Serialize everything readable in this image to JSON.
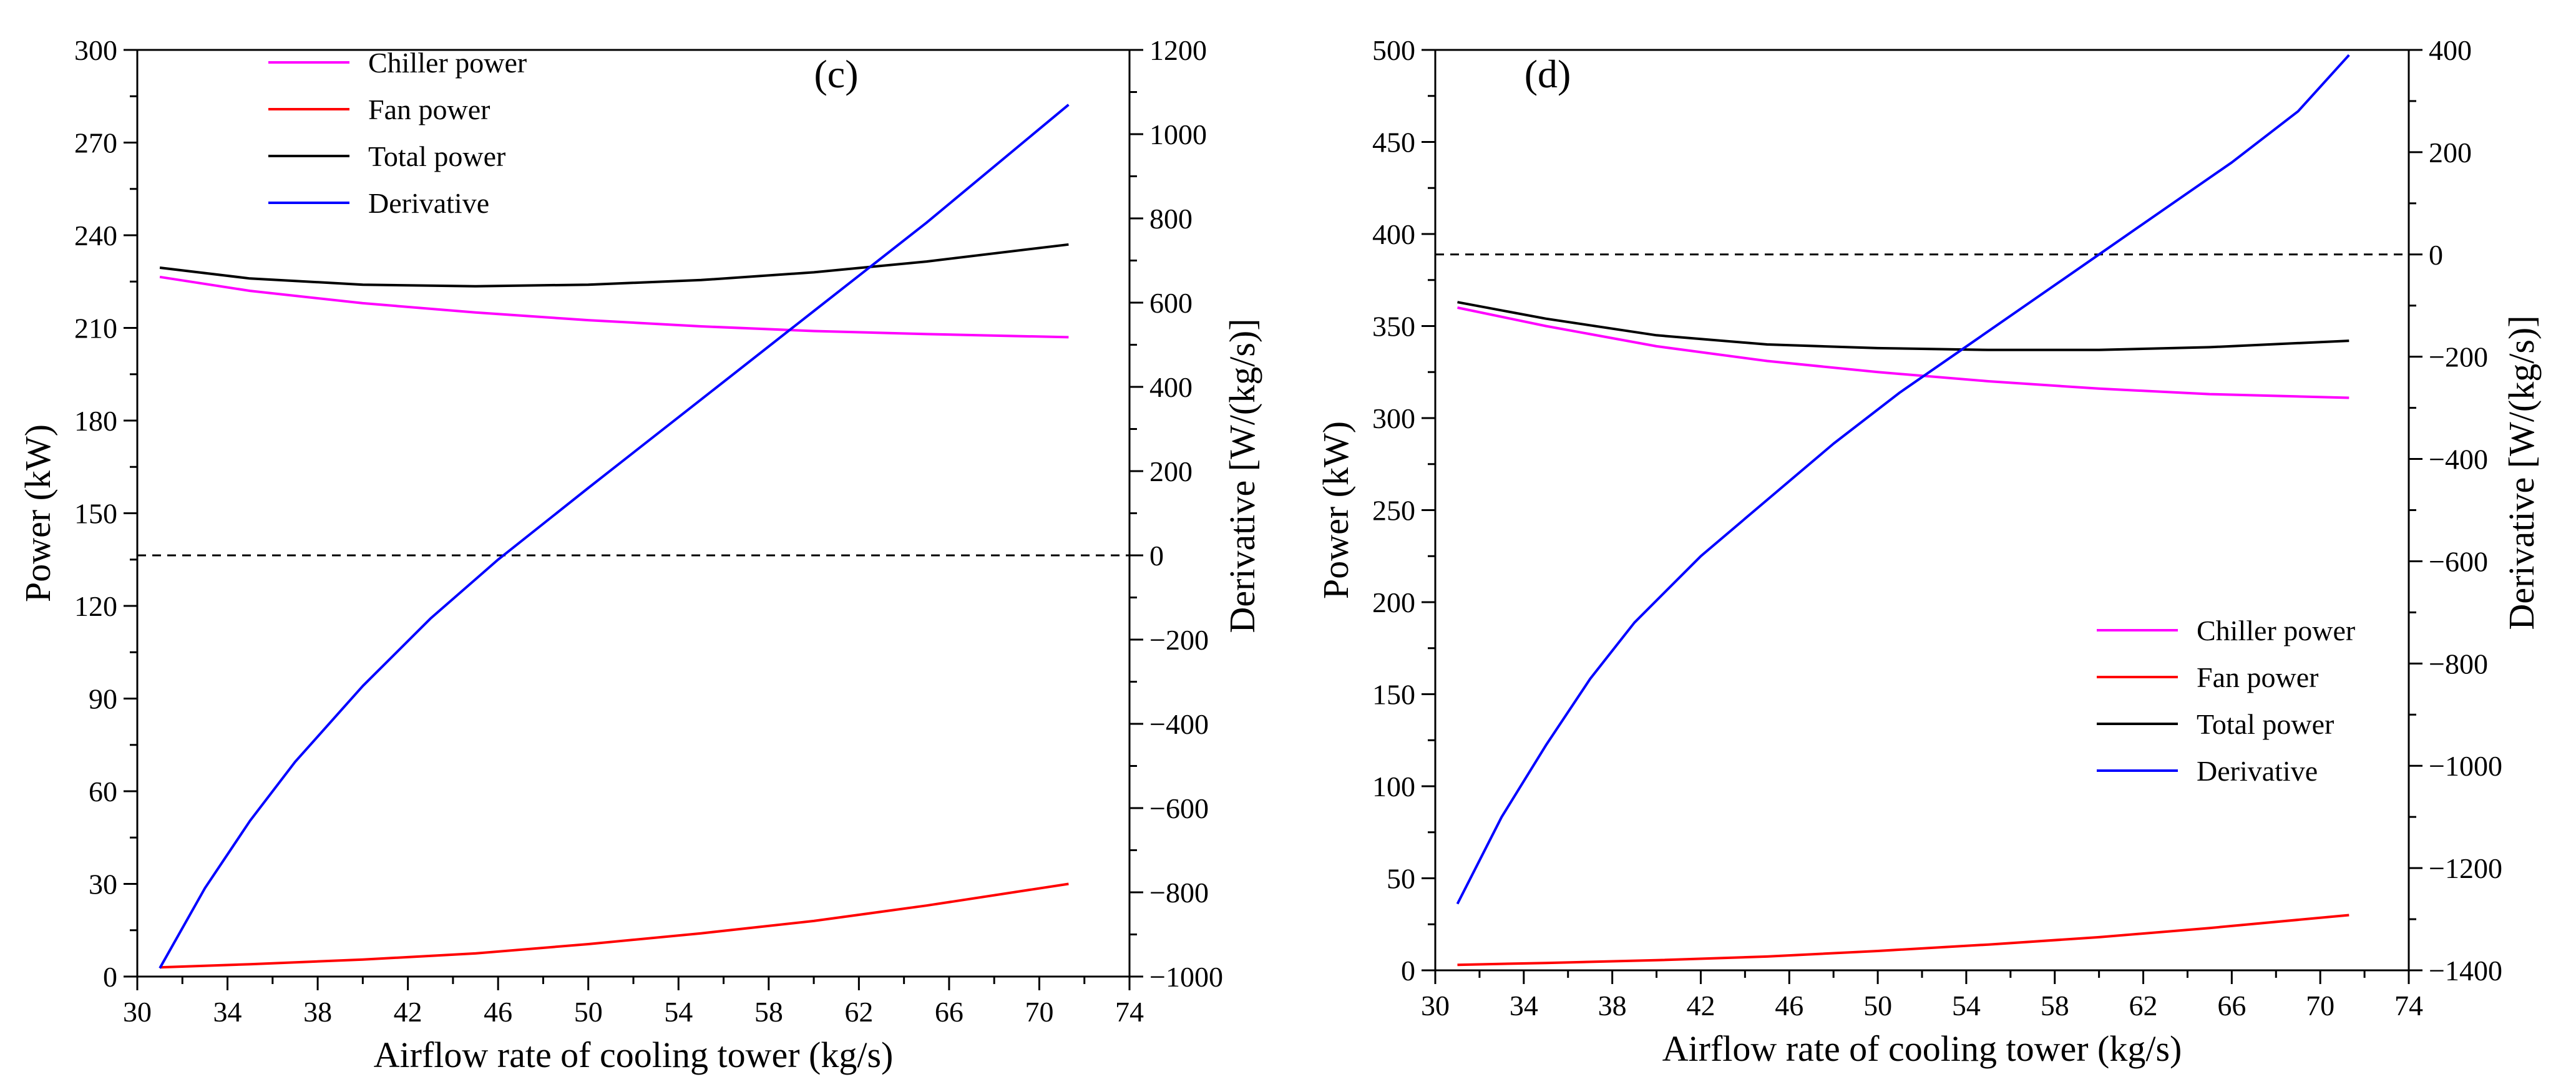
{
  "chart_data": [
    {
      "type": "line",
      "panel_label": "(c)",
      "xlabel": "Airflow rate of cooling tower (kg/s)",
      "ylabel": "Power (kW)",
      "y2label": "Derivative [W/(kg/s)]",
      "xlim": [
        30,
        74
      ],
      "ylim": [
        0,
        300
      ],
      "y2lim": [
        -1000,
        1200
      ],
      "xticks": [
        "30",
        "34",
        "38",
        "42",
        "46",
        "50",
        "54",
        "58",
        "62",
        "66",
        "70",
        "74"
      ],
      "yticks": [
        "0",
        "30",
        "60",
        "90",
        "120",
        "150",
        "180",
        "210",
        "240",
        "270",
        "300"
      ],
      "y2ticks": [
        "−1000",
        "−800",
        "−600",
        "−400",
        "−200",
        "0",
        "200",
        "400",
        "600",
        "800",
        "1000",
        "1200"
      ],
      "reference_line": {
        "axis": "y2",
        "value": 0,
        "style": "dashed"
      },
      "legend_position": "top-left",
      "series": [
        {
          "name": "Chiller power",
          "color": "#ff00ff",
          "axis": "y",
          "x": [
            31,
            35,
            40,
            45,
            50,
            55,
            60,
            65,
            71.3
          ],
          "values": [
            226.5,
            222,
            218,
            215,
            212.5,
            210.5,
            209,
            208,
            207
          ]
        },
        {
          "name": "Fan power",
          "color": "#ff0000",
          "axis": "y",
          "x": [
            31,
            35,
            40,
            45,
            50,
            55,
            60,
            65,
            71.3
          ],
          "values": [
            3,
            4,
            5.5,
            7.5,
            10.5,
            14,
            18,
            23,
            30
          ]
        },
        {
          "name": "Total power",
          "color": "#000000",
          "axis": "y",
          "x": [
            31,
            35,
            40,
            45,
            50,
            55,
            60,
            65,
            71.3
          ],
          "values": [
            229.5,
            226,
            224,
            223.5,
            224,
            225.5,
            228,
            231.5,
            237
          ]
        },
        {
          "name": "Derivative",
          "color": "#0000ff",
          "axis": "y2",
          "x": [
            31,
            33,
            35,
            37,
            40,
            43,
            46,
            50,
            55,
            60,
            65,
            71.3
          ],
          "values": [
            -980,
            -790,
            -630,
            -490,
            -310,
            -150,
            -10,
            160,
            370,
            580,
            790,
            1070
          ]
        }
      ]
    },
    {
      "type": "line",
      "panel_label": "(d)",
      "xlabel": "Airflow rate of cooling tower (kg/s)",
      "ylabel": "Power (kW)",
      "y2label": "Derivative [W/(kg/s)]",
      "xlim": [
        30,
        74
      ],
      "ylim": [
        0,
        500
      ],
      "y2lim": [
        -1400,
        400
      ],
      "xticks": [
        "30",
        "34",
        "38",
        "42",
        "46",
        "50",
        "54",
        "58",
        "62",
        "66",
        "70",
        "74"
      ],
      "yticks": [
        "0",
        "50",
        "100",
        "150",
        "200",
        "250",
        "300",
        "350",
        "400",
        "450",
        "500"
      ],
      "y2ticks": [
        "−1400",
        "−1200",
        "−1000",
        "−800",
        "−600",
        "−400",
        "−200",
        "0",
        "200",
        "400"
      ],
      "reference_line": {
        "axis": "y2",
        "value": 0,
        "style": "dashed"
      },
      "legend_position": "lower-right",
      "series": [
        {
          "name": "Chiller power",
          "color": "#ff00ff",
          "axis": "y",
          "x": [
            31,
            35,
            40,
            45,
            50,
            55,
            60,
            65,
            71.3
          ],
          "values": [
            360,
            350,
            339,
            331,
            325,
            320,
            316,
            313,
            311
          ]
        },
        {
          "name": "Fan power",
          "color": "#ff0000",
          "axis": "y",
          "x": [
            31,
            35,
            40,
            45,
            50,
            55,
            60,
            65,
            71.3
          ],
          "values": [
            3,
            4,
            5.5,
            7.5,
            10.5,
            14,
            18,
            23,
            30
          ]
        },
        {
          "name": "Total power",
          "color": "#000000",
          "axis": "y",
          "x": [
            31,
            35,
            40,
            45,
            50,
            55,
            60,
            65,
            71.3
          ],
          "values": [
            363,
            354,
            345,
            340,
            338,
            337,
            337,
            338.5,
            342
          ]
        },
        {
          "name": "Derivative",
          "color": "#0000ff",
          "axis": "y2",
          "x": [
            31,
            33,
            35,
            37,
            39,
            42,
            45,
            48,
            51,
            54,
            57,
            60,
            63,
            66,
            69,
            71.3
          ],
          "values": [
            -1270,
            -1100,
            -960,
            -830,
            -720,
            -590,
            -480,
            -370,
            -270,
            -180,
            -90,
            0,
            90,
            180,
            280,
            390
          ]
        }
      ]
    }
  ]
}
